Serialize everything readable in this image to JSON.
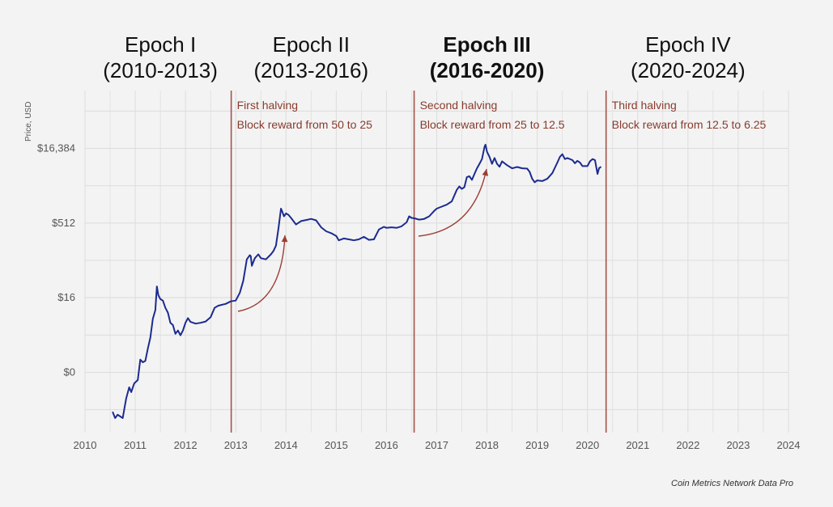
{
  "chart_data": {
    "type": "line",
    "ylabel": "Price, USD",
    "y_scale": "log2",
    "y_ticks": [
      {
        "value": 0.5,
        "label": "$0"
      },
      {
        "value": 16,
        "label": "$16"
      },
      {
        "value": 512,
        "label": "$512"
      },
      {
        "value": 16384,
        "label": "$16,384"
      }
    ],
    "xlim": [
      2010,
      2024
    ],
    "x_ticks": [
      "2010",
      "2011",
      "2012",
      "2013",
      "2014",
      "2015",
      "2016",
      "2017",
      "2018",
      "2019",
      "2020",
      "2021",
      "2022",
      "2023",
      "2024"
    ],
    "grid": true,
    "line_color": "#1c2b8f",
    "accent_color": "#a4534a",
    "source": "Coin Metrics Network Data Pro",
    "epochs": [
      {
        "title": "Epoch I",
        "range": "(2010-2013)",
        "start": 2010,
        "end": 2013
      },
      {
        "title": "Epoch II",
        "range": "(2013-2016)",
        "start": 2013,
        "end": 2016
      },
      {
        "title": "Epoch III",
        "range": "(2016-2020)",
        "start": 2016,
        "end": 2020,
        "bold": true
      },
      {
        "title": "Epoch IV",
        "range": "(2020-2024)",
        "start": 2020,
        "end": 2024
      }
    ],
    "halvings": [
      {
        "date": 2012.91,
        "label": "First halving",
        "detail": "Block reward from 50 to 25"
      },
      {
        "date": 2016.55,
        "label": "Second halving",
        "detail": "Block reward from 25 to 12.5"
      },
      {
        "date": 2020.37,
        "label": "Third halving",
        "detail": "Block reward from 12.5 to 6.25"
      }
    ],
    "series": [
      {
        "points": [
          [
            2010.55,
            0.08
          ],
          [
            2010.6,
            0.06
          ],
          [
            2010.65,
            0.07
          ],
          [
            2010.75,
            0.06
          ],
          [
            2010.82,
            0.15
          ],
          [
            2010.88,
            0.25
          ],
          [
            2010.92,
            0.2
          ],
          [
            2010.98,
            0.3
          ],
          [
            2011.05,
            0.35
          ],
          [
            2011.1,
            0.9
          ],
          [
            2011.15,
            0.8
          ],
          [
            2011.2,
            0.85
          ],
          [
            2011.25,
            1.5
          ],
          [
            2011.3,
            2.5
          ],
          [
            2011.35,
            6
          ],
          [
            2011.4,
            9
          ],
          [
            2011.43,
            27
          ],
          [
            2011.46,
            18
          ],
          [
            2011.5,
            15
          ],
          [
            2011.55,
            14
          ],
          [
            2011.6,
            10
          ],
          [
            2011.65,
            8
          ],
          [
            2011.7,
            5
          ],
          [
            2011.75,
            4.5
          ],
          [
            2011.8,
            3
          ],
          [
            2011.85,
            3.5
          ],
          [
            2011.9,
            2.8
          ],
          [
            2011.95,
            3.5
          ],
          [
            2012.0,
            5
          ],
          [
            2012.05,
            6.2
          ],
          [
            2012.1,
            5.2
          ],
          [
            2012.2,
            4.8
          ],
          [
            2012.3,
            5
          ],
          [
            2012.4,
            5.3
          ],
          [
            2012.5,
            6.5
          ],
          [
            2012.58,
            10
          ],
          [
            2012.65,
            11
          ],
          [
            2012.72,
            11.5
          ],
          [
            2012.8,
            12
          ],
          [
            2012.9,
            13.5
          ],
          [
            2013.0,
            14
          ],
          [
            2013.08,
            20
          ],
          [
            2013.15,
            35
          ],
          [
            2013.22,
            95
          ],
          [
            2013.28,
            115
          ],
          [
            2013.3,
            110
          ],
          [
            2013.32,
            70
          ],
          [
            2013.38,
            100
          ],
          [
            2013.45,
            120
          ],
          [
            2013.5,
            100
          ],
          [
            2013.6,
            95
          ],
          [
            2013.7,
            120
          ],
          [
            2013.75,
            140
          ],
          [
            2013.8,
            180
          ],
          [
            2013.85,
            400
          ],
          [
            2013.9,
            1000
          ],
          [
            2013.93,
            850
          ],
          [
            2013.96,
            700
          ],
          [
            2014.0,
            800
          ],
          [
            2014.05,
            750
          ],
          [
            2014.1,
            650
          ],
          [
            2014.2,
            480
          ],
          [
            2014.3,
            560
          ],
          [
            2014.4,
            590
          ],
          [
            2014.5,
            620
          ],
          [
            2014.6,
            580
          ],
          [
            2014.7,
            420
          ],
          [
            2014.8,
            350
          ],
          [
            2014.9,
            320
          ],
          [
            2015.0,
            280
          ],
          [
            2015.05,
            230
          ],
          [
            2015.15,
            250
          ],
          [
            2015.25,
            240
          ],
          [
            2015.35,
            230
          ],
          [
            2015.45,
            240
          ],
          [
            2015.55,
            270
          ],
          [
            2015.65,
            235
          ],
          [
            2015.75,
            240
          ],
          [
            2015.85,
            380
          ],
          [
            2015.95,
            430
          ],
          [
            2016.0,
            410
          ],
          [
            2016.1,
            420
          ],
          [
            2016.2,
            410
          ],
          [
            2016.3,
            440
          ],
          [
            2016.4,
            530
          ],
          [
            2016.45,
            700
          ],
          [
            2016.5,
            650
          ],
          [
            2016.55,
            640
          ],
          [
            2016.65,
            600
          ],
          [
            2016.75,
            620
          ],
          [
            2016.85,
            700
          ],
          [
            2016.95,
            900
          ],
          [
            2017.0,
            1000
          ],
          [
            2017.1,
            1100
          ],
          [
            2017.2,
            1200
          ],
          [
            2017.3,
            1400
          ],
          [
            2017.4,
            2400
          ],
          [
            2017.45,
            2800
          ],
          [
            2017.5,
            2500
          ],
          [
            2017.55,
            2700
          ],
          [
            2017.6,
            4300
          ],
          [
            2017.65,
            4500
          ],
          [
            2017.7,
            3800
          ],
          [
            2017.75,
            5000
          ],
          [
            2017.8,
            6500
          ],
          [
            2017.85,
            8000
          ],
          [
            2017.9,
            10000
          ],
          [
            2017.95,
            17500
          ],
          [
            2017.97,
            19500
          ],
          [
            2018.0,
            14000
          ],
          [
            2018.05,
            11000
          ],
          [
            2018.1,
            8000
          ],
          [
            2018.15,
            10500
          ],
          [
            2018.2,
            8000
          ],
          [
            2018.25,
            7000
          ],
          [
            2018.3,
            9000
          ],
          [
            2018.4,
            7500
          ],
          [
            2018.5,
            6500
          ],
          [
            2018.6,
            6900
          ],
          [
            2018.7,
            6500
          ],
          [
            2018.8,
            6400
          ],
          [
            2018.85,
            5500
          ],
          [
            2018.9,
            4000
          ],
          [
            2018.95,
            3400
          ],
          [
            2019.0,
            3700
          ],
          [
            2019.1,
            3600
          ],
          [
            2019.2,
            4000
          ],
          [
            2019.3,
            5200
          ],
          [
            2019.4,
            8500
          ],
          [
            2019.45,
            11000
          ],
          [
            2019.5,
            12500
          ],
          [
            2019.55,
            10000
          ],
          [
            2019.6,
            10500
          ],
          [
            2019.7,
            9500
          ],
          [
            2019.75,
            8200
          ],
          [
            2019.8,
            9200
          ],
          [
            2019.85,
            8500
          ],
          [
            2019.9,
            7200
          ],
          [
            2020.0,
            7200
          ],
          [
            2020.05,
            9000
          ],
          [
            2020.1,
            10000
          ],
          [
            2020.15,
            9500
          ],
          [
            2020.2,
            5000
          ],
          [
            2020.23,
            6500
          ],
          [
            2020.27,
            7000
          ]
        ]
      }
    ]
  }
}
